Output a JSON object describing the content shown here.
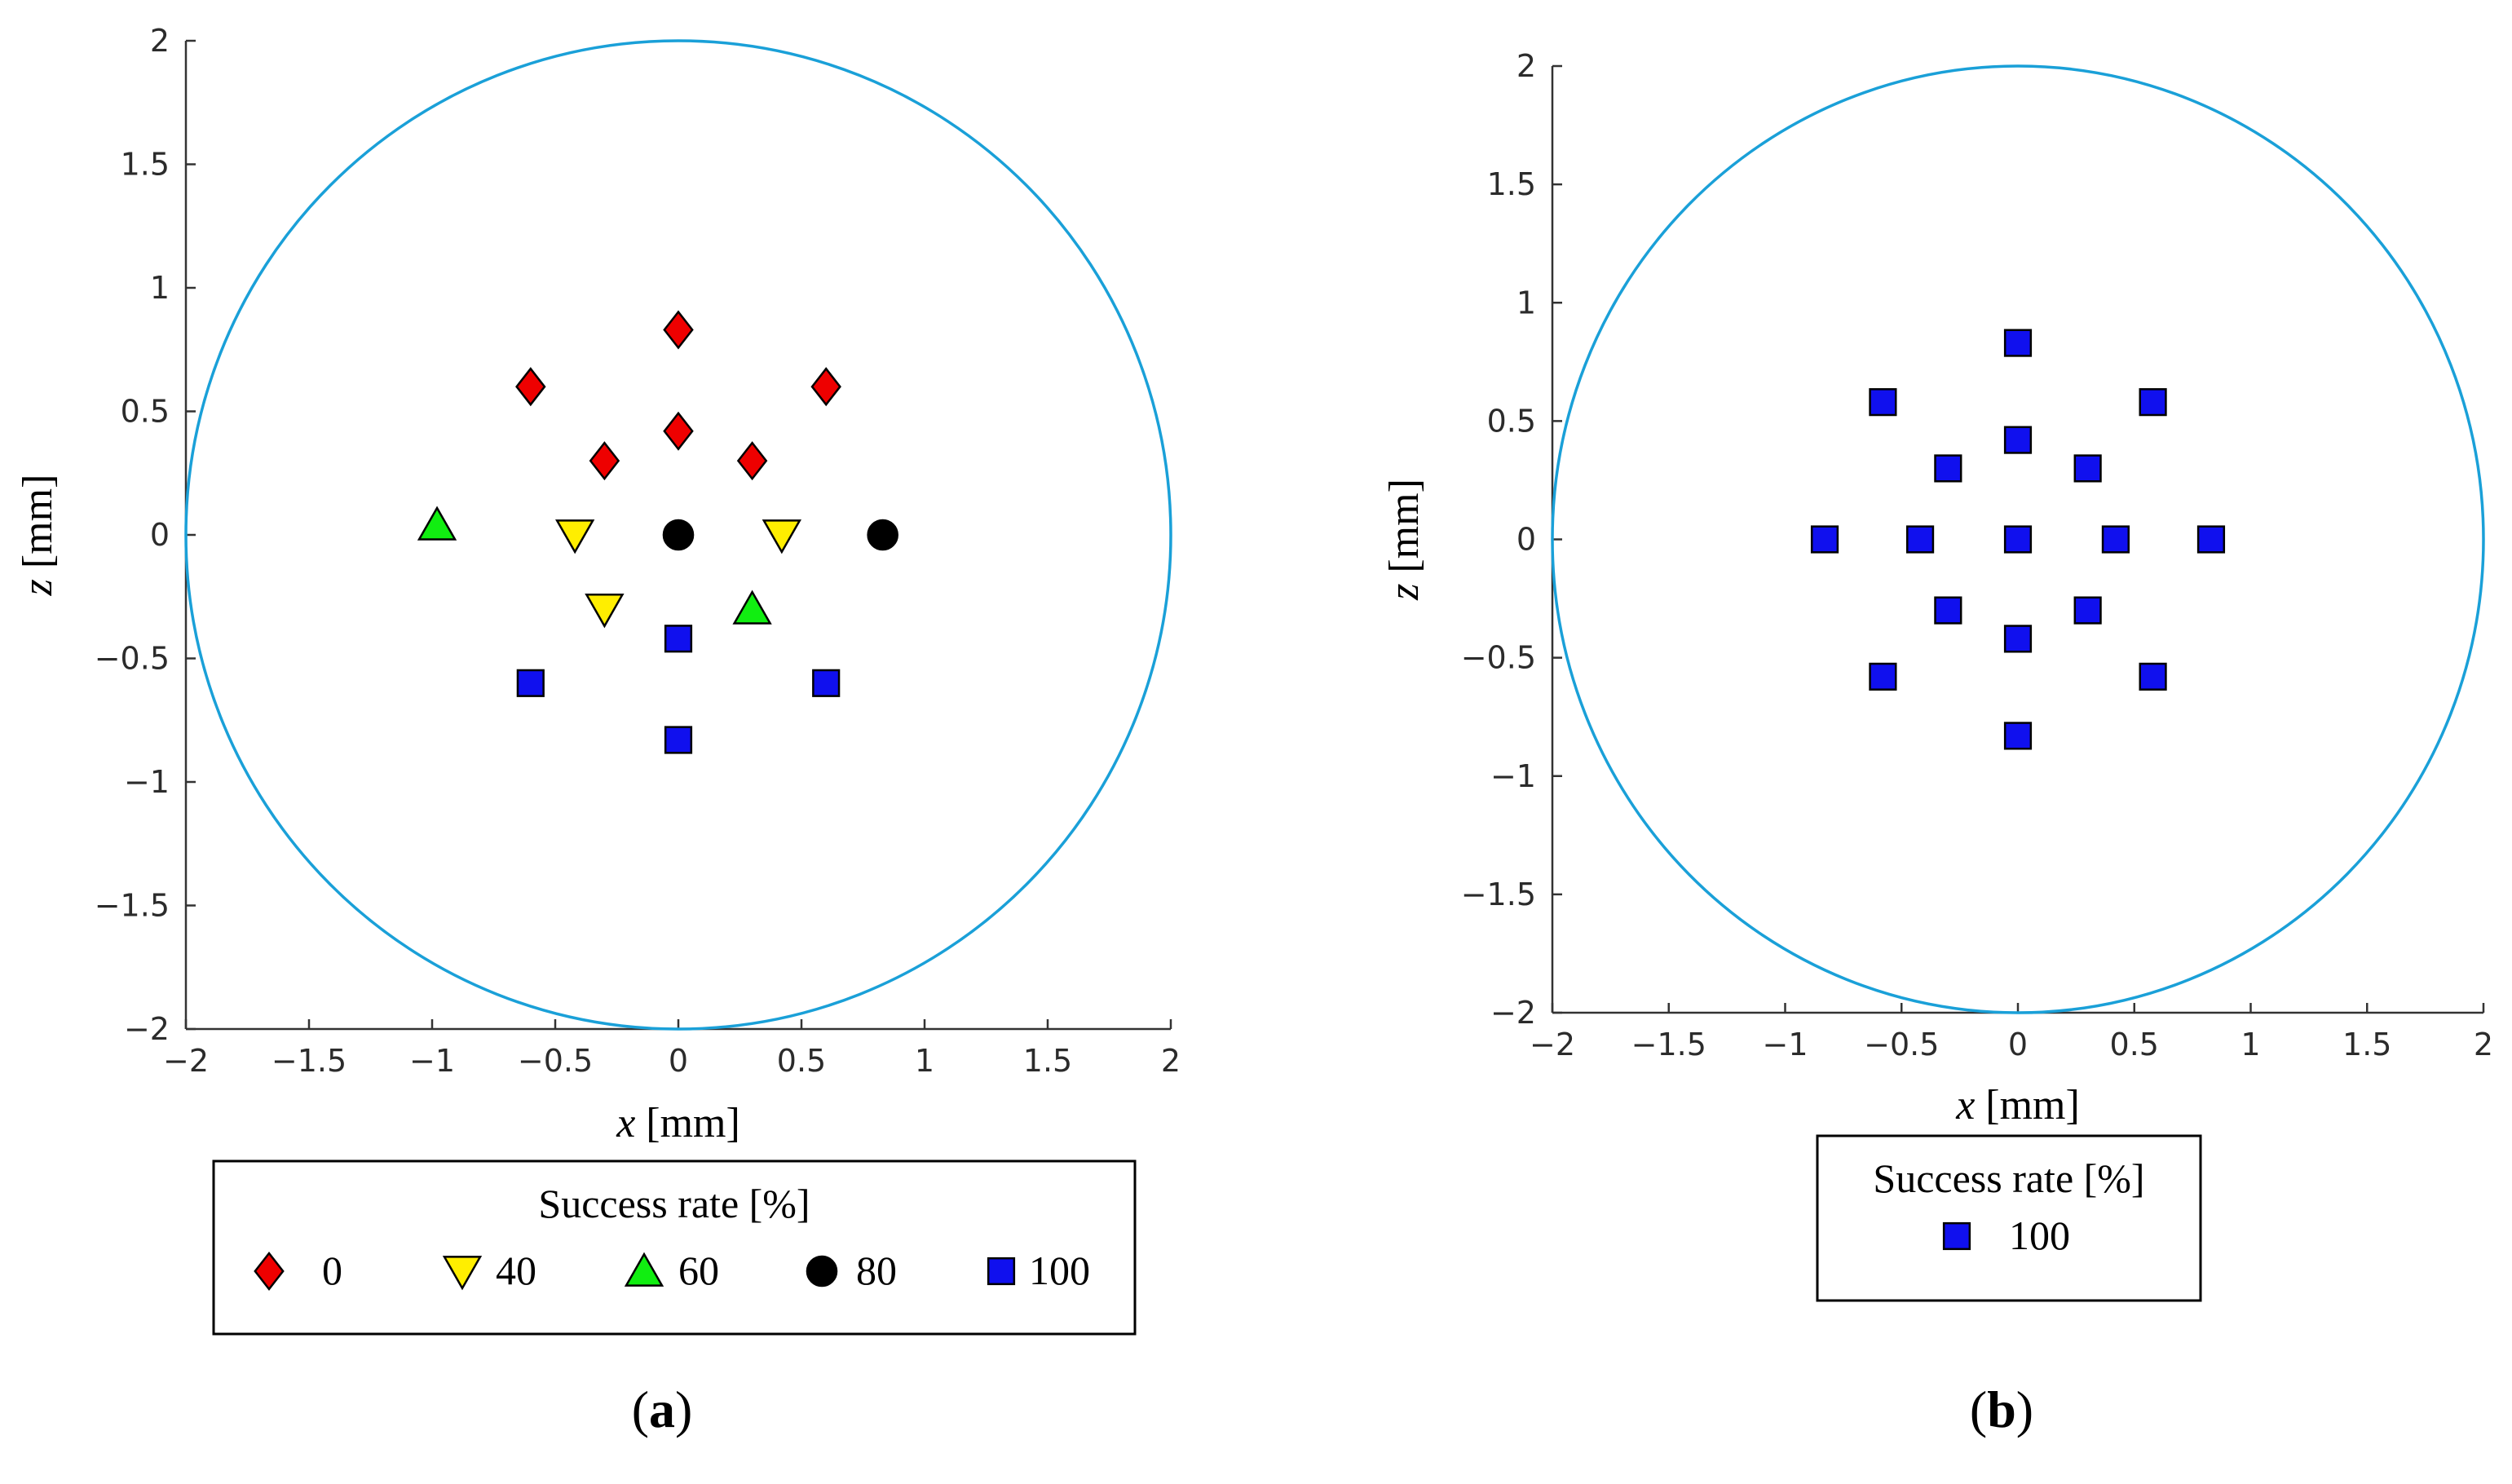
{
  "chart_data": [
    {
      "type": "scatter",
      "panel_label": {
        "open": "(",
        "letter": "a",
        "close": ")"
      },
      "xlabel": {
        "var": "x",
        "unit": " [mm]"
      },
      "ylabel": {
        "var": "z",
        "unit": " [mm]"
      },
      "xlim": [
        -2,
        2
      ],
      "ylim": [
        -2,
        2
      ],
      "xticks": [
        -2,
        -1.5,
        -1,
        -0.5,
        0,
        0.5,
        1,
        1.5,
        2
      ],
      "yticks": [
        -2,
        -1.5,
        -1,
        -0.5,
        0,
        0.5,
        1,
        1.5,
        2
      ],
      "xtick_labels": [
        "−2",
        "−1.5",
        "−1",
        "−0.5",
        "0",
        "0.5",
        "1",
        "1.5",
        "2"
      ],
      "ytick_labels": [
        "−2",
        "−1.5",
        "−1",
        "−0.5",
        "0",
        "0.5",
        "1",
        "1.5",
        "2"
      ],
      "boundary_circle": {
        "center": [
          0,
          0
        ],
        "radius": 2,
        "color": "#1aa0d8"
      },
      "legend_title": "Success rate [%]",
      "series": [
        {
          "name": "0",
          "marker": "diamond",
          "color": "#ee0000",
          "points": [
            [
              0,
              0.83
            ],
            [
              -0.6,
              0.6
            ],
            [
              0.6,
              0.6
            ],
            [
              0,
              0.42
            ],
            [
              -0.3,
              0.3
            ],
            [
              0.3,
              0.3
            ]
          ]
        },
        {
          "name": "40",
          "marker": "triangle-down",
          "color": "#ffee00",
          "points": [
            [
              -0.42,
              0
            ],
            [
              0.42,
              0
            ],
            [
              -0.3,
              -0.3
            ]
          ]
        },
        {
          "name": "60",
          "marker": "triangle-up",
          "color": "#11ee11",
          "points": [
            [
              -0.98,
              0.04
            ],
            [
              0.3,
              -0.3
            ]
          ]
        },
        {
          "name": "80",
          "marker": "circle",
          "color": "#000000",
          "points": [
            [
              0,
              0
            ],
            [
              0.83,
              0
            ]
          ]
        },
        {
          "name": "100",
          "marker": "square",
          "color": "#1010ee",
          "points": [
            [
              0,
              -0.42
            ],
            [
              -0.6,
              -0.6
            ],
            [
              0.6,
              -0.6
            ],
            [
              0,
              -0.83
            ]
          ]
        }
      ]
    },
    {
      "type": "scatter",
      "panel_label": {
        "open": "(",
        "letter": "b",
        "close": ")"
      },
      "xlabel": {
        "var": "x",
        "unit": " [mm]"
      },
      "ylabel": {
        "var": "z",
        "unit": " [mm]"
      },
      "xlim": [
        -2,
        2
      ],
      "ylim": [
        -2,
        2
      ],
      "xticks": [
        -2,
        -1.5,
        -1,
        -0.5,
        0,
        0.5,
        1,
        1.5,
        2
      ],
      "yticks": [
        -2,
        -1.5,
        -1,
        -0.5,
        0,
        0.5,
        1,
        1.5,
        2
      ],
      "xtick_labels": [
        "−2",
        "−1.5",
        "−1",
        "−0.5",
        "0",
        "0.5",
        "1",
        "1.5",
        "2"
      ],
      "ytick_labels": [
        "−2",
        "−1.5",
        "−1",
        "−0.5",
        "0",
        "0.5",
        "1",
        "1.5",
        "2"
      ],
      "boundary_circle": {
        "center": [
          0,
          0
        ],
        "radius": 2,
        "color": "#1aa0d8"
      },
      "legend_title": "Success rate [%]",
      "series": [
        {
          "name": "100",
          "marker": "square",
          "color": "#1010ee",
          "points": [
            [
              0,
              0.83
            ],
            [
              -0.58,
              0.58
            ],
            [
              0.58,
              0.58
            ],
            [
              0,
              0.42
            ],
            [
              -0.3,
              0.3
            ],
            [
              0.3,
              0.3
            ],
            [
              -0.83,
              0
            ],
            [
              -0.42,
              0
            ],
            [
              0,
              0
            ],
            [
              0.42,
              0
            ],
            [
              0.83,
              0
            ],
            [
              -0.3,
              -0.3
            ],
            [
              0.3,
              -0.3
            ],
            [
              0,
              -0.42
            ],
            [
              -0.58,
              -0.58
            ],
            [
              0.58,
              -0.58
            ],
            [
              0,
              -0.83
            ]
          ]
        }
      ]
    }
  ]
}
